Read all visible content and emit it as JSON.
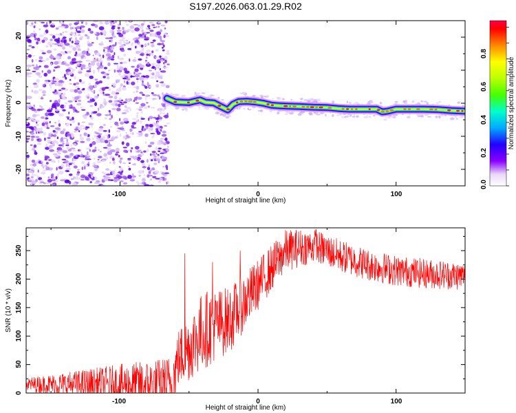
{
  "figure": {
    "title": "S197.2026.063.01.29.R02"
  },
  "chart_data": [
    {
      "type": "heatmap",
      "title": "S197.2026.063.01.29.R02",
      "xlabel": "Height of straight line (km)",
      "ylabel": "Frequency (Hz)",
      "xlim": [
        -168,
        150
      ],
      "ylim": [
        -25,
        25
      ],
      "xticks": [
        "-100",
        "0",
        "100"
      ],
      "yticks": [
        "20",
        "10",
        "0",
        "-10",
        "-20"
      ],
      "noise_region_x": [
        -168,
        -65
      ],
      "signal_start_x": -66,
      "ridge": {
        "x": [
          -66,
          -60,
          -50,
          -42,
          -38,
          -32,
          -27,
          -22,
          -18,
          -14,
          -8,
          -2,
          4,
          10,
          16,
          22,
          30,
          40,
          50,
          58,
          66,
          74,
          80,
          86,
          90,
          94,
          100,
          110,
          120,
          130,
          140,
          150
        ],
        "freq": [
          1.5,
          0.4,
          0.2,
          1.0,
          0.3,
          0.1,
          -1.0,
          -2.0,
          -0.3,
          0.5,
          0.6,
          0.4,
          0.0,
          -0.6,
          -0.8,
          -0.9,
          -1.0,
          -1.2,
          -1.3,
          -1.6,
          -1.8,
          -1.8,
          -1.8,
          -1.8,
          -2.6,
          -2.4,
          -1.8,
          -1.8,
          -1.8,
          -1.9,
          -2.2,
          -2.4
        ]
      },
      "colorbar": {
        "label": "Normalized spectral amplitude",
        "range": [
          0,
          1
        ],
        "ticks": [
          "0.0",
          "0.2",
          "0.4",
          "0.6",
          "0.8"
        ]
      }
    },
    {
      "type": "line",
      "xlabel": "Height of straight line (km)",
      "ylabel": "SNR (10 * v/v)",
      "xlim": [
        -168,
        150
      ],
      "ylim": [
        0,
        290
      ],
      "xticks": [
        "-100",
        "0",
        "100"
      ],
      "yticks": [
        "250",
        "200",
        "150",
        "100",
        "50",
        "0"
      ],
      "color": "#ff0000",
      "trend": {
        "x": [
          -168,
          -70,
          -62,
          -58,
          -50,
          -40,
          -30,
          -20,
          -10,
          0,
          10,
          20,
          30,
          40,
          50,
          60,
          80,
          100,
          120,
          150
        ],
        "y": [
          15,
          15,
          20,
          60,
          80,
          110,
          120,
          130,
          160,
          190,
          220,
          250,
          255,
          258,
          250,
          240,
          225,
          215,
          210,
          205
        ]
      },
      "noise_amplitude": {
        "x": [
          -168,
          -60,
          -40,
          0,
          40,
          150
        ],
        "y": [
          12,
          50,
          70,
          45,
          30,
          25
        ]
      },
      "annotated_peaks": [
        {
          "x": -53,
          "y": 245
        },
        {
          "x": -33,
          "y": 230
        },
        {
          "x": -13,
          "y": 250
        },
        {
          "x": 42,
          "y": 287
        }
      ]
    }
  ]
}
